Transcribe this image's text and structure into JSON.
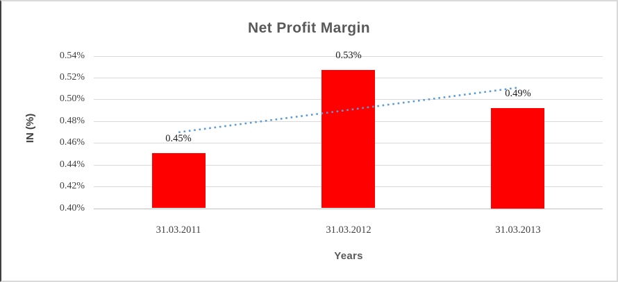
{
  "chart_data": {
    "type": "bar",
    "title": "Net Profit Margin",
    "xlabel": "Years",
    "ylabel": "IN (%)",
    "categories": [
      "31.03.2011",
      "31.03.2012",
      "31.03.2013"
    ],
    "values": [
      0.4505,
      0.527,
      0.492
    ],
    "data_labels": [
      "0.45%",
      "0.53%",
      "0.49%"
    ],
    "ylim": [
      0.4,
      0.54
    ],
    "y_tick_step": 0.02,
    "y_tick_labels": [
      "0.40%",
      "0.42%",
      "0.44%",
      "0.46%",
      "0.48%",
      "0.50%",
      "0.52%",
      "0.54%"
    ],
    "grid": true,
    "legend": false,
    "bar_color": "#FF0000",
    "trendline": {
      "type": "linear",
      "style": "dotted",
      "color": "#5B9BD5",
      "start_value": 0.4698,
      "end_value": 0.5108
    },
    "colors": {
      "title_text": "#595959",
      "axis_text": "#404040",
      "gridline": "#D9D9D9",
      "axis_line": "#BFBFBF"
    }
  }
}
